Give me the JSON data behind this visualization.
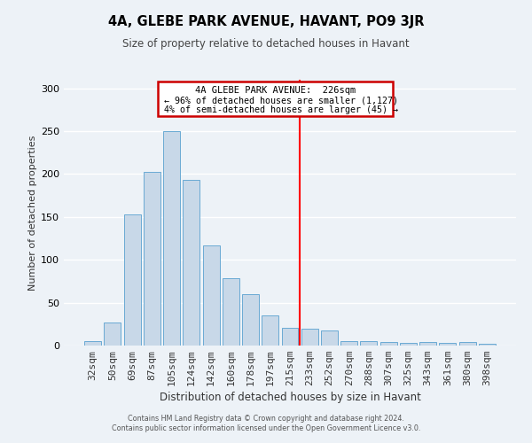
{
  "title": "4A, GLEBE PARK AVENUE, HAVANT, PO9 3JR",
  "subtitle": "Size of property relative to detached houses in Havant",
  "xlabel": "Distribution of detached houses by size in Havant",
  "ylabel": "Number of detached properties",
  "bar_labels": [
    "32sqm",
    "50sqm",
    "69sqm",
    "87sqm",
    "105sqm",
    "124sqm",
    "142sqm",
    "160sqm",
    "178sqm",
    "197sqm",
    "215sqm",
    "233sqm",
    "252sqm",
    "270sqm",
    "288sqm",
    "307sqm",
    "325sqm",
    "343sqm",
    "361sqm",
    "380sqm",
    "398sqm"
  ],
  "bar_values": [
    5,
    27,
    153,
    203,
    250,
    193,
    117,
    79,
    60,
    35,
    21,
    20,
    18,
    5,
    5,
    4,
    3,
    4,
    3,
    4,
    2
  ],
  "bar_color": "#c8d8e8",
  "bar_edge_color": "#6aaad4",
  "reference_line_x": 10.5,
  "annotation_title": "4A GLEBE PARK AVENUE:  226sqm",
  "annotation_line1": "← 96% of detached houses are smaller (1,127)",
  "annotation_line2": "4% of semi-detached houses are larger (45) →",
  "box_color": "#cc0000",
  "ylim": [
    0,
    310
  ],
  "yticks": [
    0,
    50,
    100,
    150,
    200,
    250,
    300
  ],
  "footer1": "Contains HM Land Registry data © Crown copyright and database right 2024.",
  "footer2": "Contains public sector information licensed under the Open Government Licence v3.0.",
  "background_color": "#edf2f7"
}
